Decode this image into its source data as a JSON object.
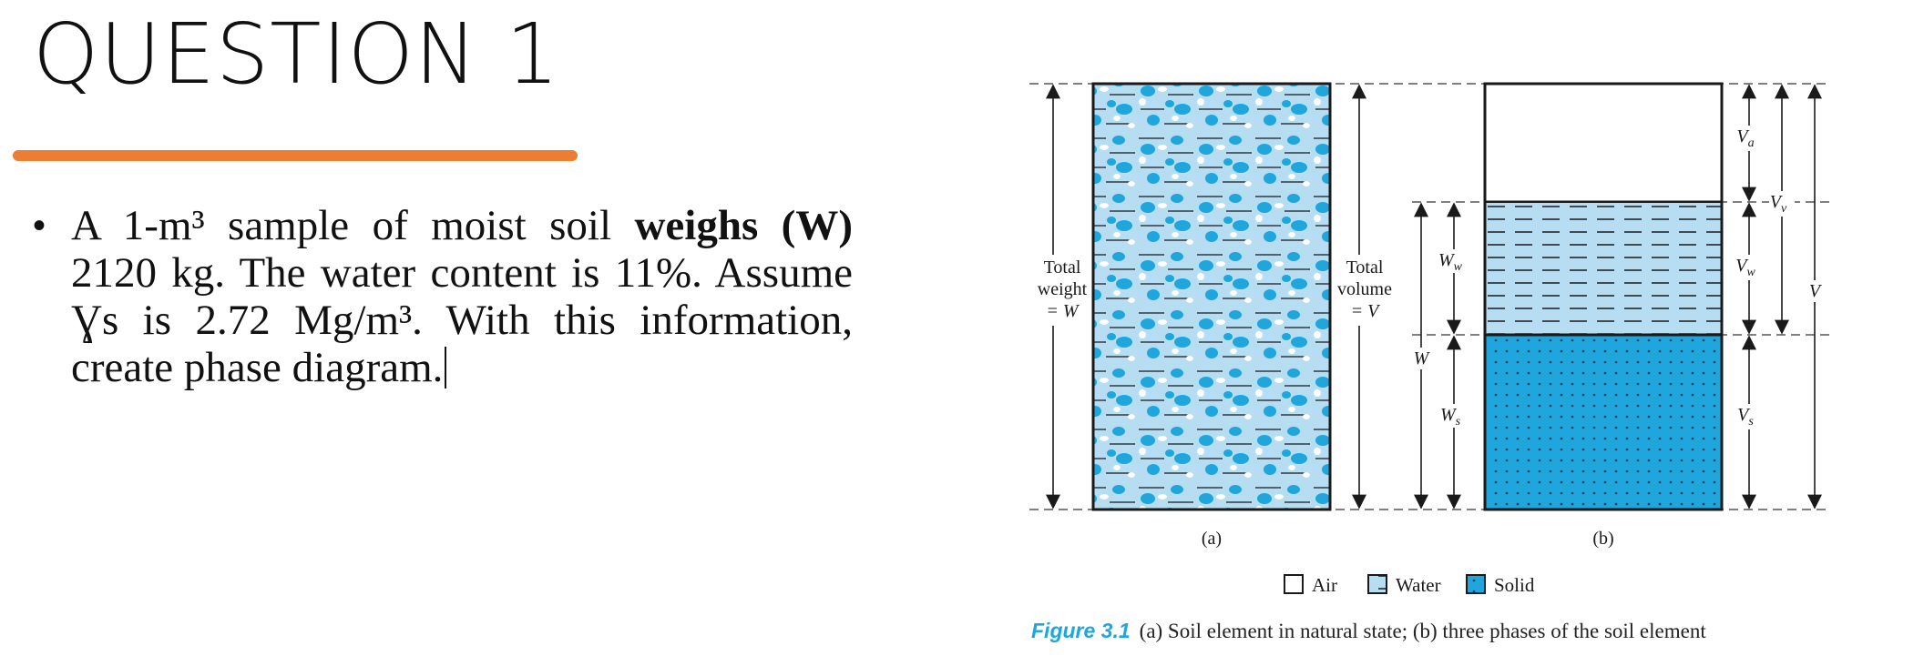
{
  "slide": {
    "title": "QUESTION 1",
    "bullet": {
      "part1": "A 1-m³ sample of moist soil ",
      "bold": "weighs (W)",
      "part2": " 2120 kg. The water content is 11%. Assume Ɣs is 2.72 Mg/m³. With this information, create phase diagram."
    }
  },
  "figure": {
    "left_labels": {
      "line1": "Total",
      "line2": "weight",
      "line3": "= W"
    },
    "middle_labels": {
      "line1": "Total",
      "line2": "volume",
      "line3": "= V"
    },
    "weights": {
      "w": "W",
      "ww": "W",
      "ww_sub": "w",
      "ws": "W",
      "ws_sub": "s"
    },
    "volumes": {
      "va": "V",
      "va_sub": "a",
      "vv": "V",
      "vv_sub": "v",
      "vw": "V",
      "vw_sub": "w",
      "vs": "V",
      "vs_sub": "s",
      "v": "V"
    },
    "panel_a": "(a)",
    "panel_b": "(b)",
    "legend": {
      "air": "Air",
      "water": "Water",
      "solid": "Solid"
    },
    "caption_label": "Figure 3.1",
    "caption_text": "(a) Soil element in natural state; (b) three phases of the soil element",
    "colors": {
      "solid": "#1fa6dc",
      "water": "#b6ddf2",
      "ink": "#1a1a1a",
      "accent": "#ee7d34"
    }
  }
}
